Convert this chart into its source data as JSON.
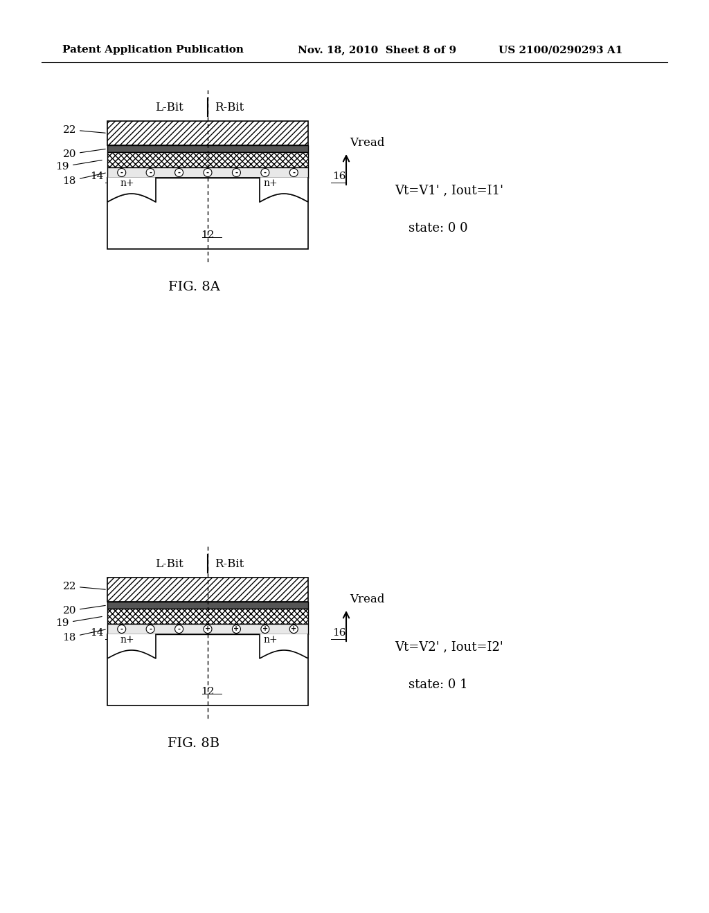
{
  "bg_color": "#ffffff",
  "header_left": "Patent Application Publication",
  "header_mid": "Nov. 18, 2010  Sheet 8 of 9",
  "header_right": "US 2100/0290293 A1",
  "fig8a_label": "FIG. 8A",
  "fig8b_label": "FIG. 8B",
  "lbit_label": "L-Bit",
  "rbit_label": "R-Bit",
  "vread_label": "Vread",
  "fig8a_eq": "Vt=V1' , Iout=I1'",
  "fig8a_state": "state: 0 0",
  "fig8b_eq": "Vt=V2' , Iout=I2'",
  "fig8b_state": "state: 0 1",
  "labels_8a": [
    "22",
    "20",
    "19",
    "18",
    "14",
    "16",
    "12"
  ],
  "labels_8b": [
    "22",
    "20",
    "19",
    "18",
    "14",
    "16",
    "12"
  ]
}
